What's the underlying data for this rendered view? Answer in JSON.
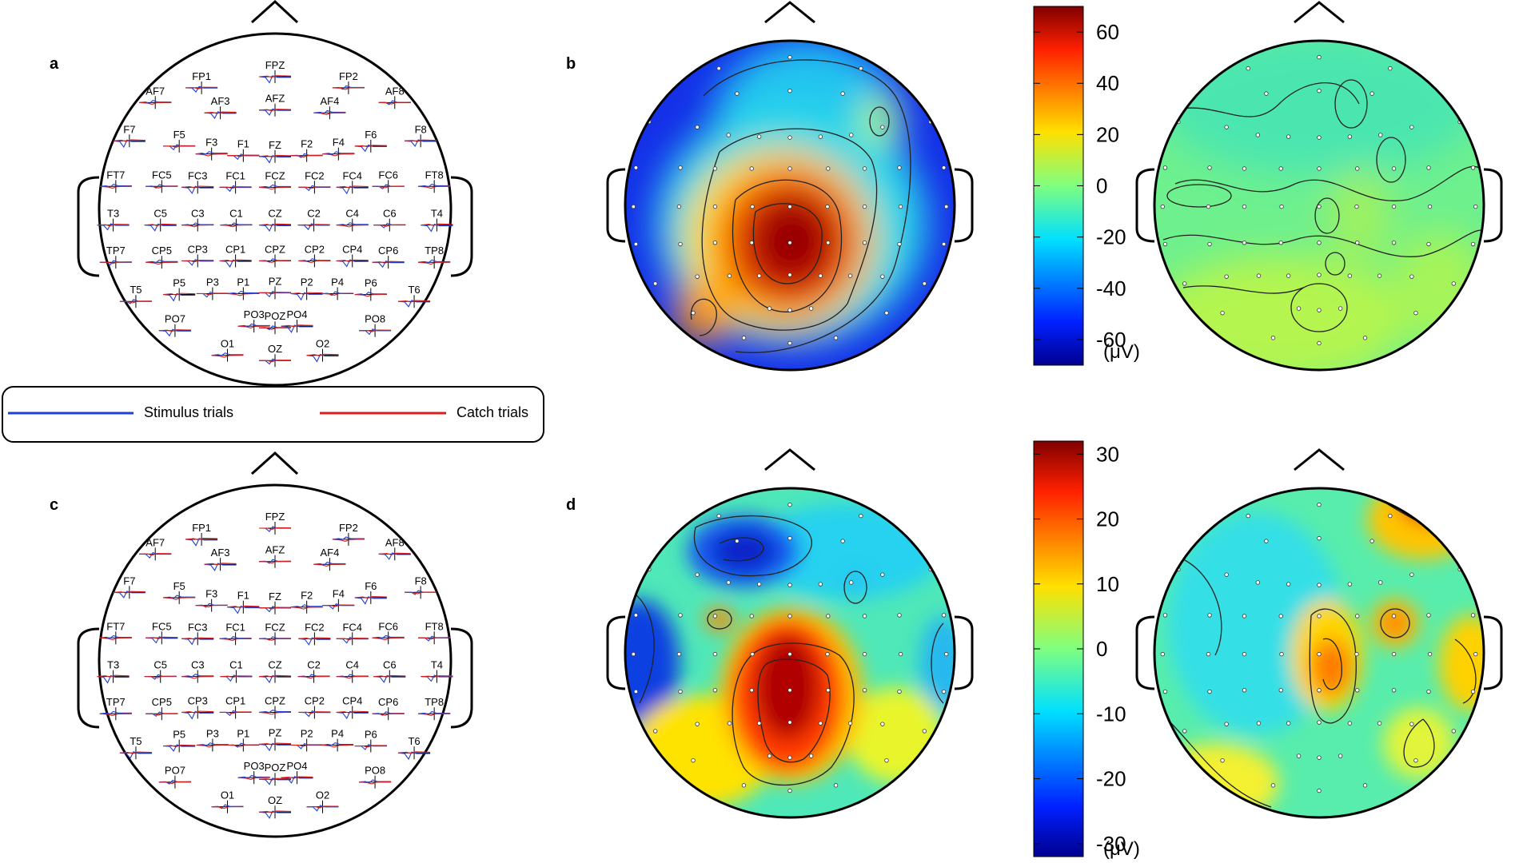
{
  "panels": {
    "a": {
      "label": "a"
    },
    "b": {
      "label": "b"
    },
    "c": {
      "label": "c"
    },
    "d": {
      "label": "d"
    }
  },
  "electrodes": [
    {
      "name": "FP1",
      "rx": 0.273,
      "ry": 0.04
    },
    {
      "name": "FPZ",
      "rx": 0.5,
      "ry": 0.0
    },
    {
      "name": "FP2",
      "rx": 0.727,
      "ry": 0.04
    },
    {
      "name": "AF7",
      "rx": 0.13,
      "ry": 0.093
    },
    {
      "name": "AF3",
      "rx": 0.331,
      "ry": 0.13
    },
    {
      "name": "AFZ",
      "rx": 0.5,
      "ry": 0.12
    },
    {
      "name": "AF4",
      "rx": 0.669,
      "ry": 0.13
    },
    {
      "name": "AF8",
      "rx": 0.87,
      "ry": 0.093
    },
    {
      "name": "F7",
      "rx": 0.05,
      "ry": 0.231
    },
    {
      "name": "F5",
      "rx": 0.204,
      "ry": 0.25
    },
    {
      "name": "F3",
      "rx": 0.304,
      "ry": 0.278
    },
    {
      "name": "F1",
      "rx": 0.402,
      "ry": 0.284
    },
    {
      "name": "FZ",
      "rx": 0.5,
      "ry": 0.287
    },
    {
      "name": "F2",
      "rx": 0.598,
      "ry": 0.284
    },
    {
      "name": "F4",
      "rx": 0.696,
      "ry": 0.278
    },
    {
      "name": "F6",
      "rx": 0.796,
      "ry": 0.25
    },
    {
      "name": "F8",
      "rx": 0.95,
      "ry": 0.231
    },
    {
      "name": "FT7",
      "rx": 0.008,
      "ry": 0.395
    },
    {
      "name": "FC5",
      "rx": 0.15,
      "ry": 0.395
    },
    {
      "name": "FC3",
      "rx": 0.261,
      "ry": 0.398
    },
    {
      "name": "FC1",
      "rx": 0.378,
      "ry": 0.398
    },
    {
      "name": "FCZ",
      "rx": 0.5,
      "ry": 0.398
    },
    {
      "name": "FC2",
      "rx": 0.622,
      "ry": 0.398
    },
    {
      "name": "FC4",
      "rx": 0.739,
      "ry": 0.398
    },
    {
      "name": "FC6",
      "rx": 0.85,
      "ry": 0.395
    },
    {
      "name": "FT8",
      "rx": 0.992,
      "ry": 0.395
    },
    {
      "name": "T3",
      "rx": 0.0,
      "ry": 0.534
    },
    {
      "name": "C5",
      "rx": 0.146,
      "ry": 0.534
    },
    {
      "name": "C3",
      "rx": 0.261,
      "ry": 0.534
    },
    {
      "name": "C1",
      "rx": 0.38,
      "ry": 0.534
    },
    {
      "name": "CZ",
      "rx": 0.5,
      "ry": 0.534
    },
    {
      "name": "C2",
      "rx": 0.62,
      "ry": 0.534
    },
    {
      "name": "C4",
      "rx": 0.739,
      "ry": 0.534
    },
    {
      "name": "C6",
      "rx": 0.854,
      "ry": 0.534
    },
    {
      "name": "T4",
      "rx": 1.0,
      "ry": 0.534
    },
    {
      "name": "TP7",
      "rx": 0.008,
      "ry": 0.668
    },
    {
      "name": "CP5",
      "rx": 0.15,
      "ry": 0.668
    },
    {
      "name": "CP3",
      "rx": 0.261,
      "ry": 0.663
    },
    {
      "name": "CP1",
      "rx": 0.378,
      "ry": 0.663
    },
    {
      "name": "CPZ",
      "rx": 0.5,
      "ry": 0.663
    },
    {
      "name": "CP2",
      "rx": 0.622,
      "ry": 0.663
    },
    {
      "name": "CP4",
      "rx": 0.739,
      "ry": 0.663
    },
    {
      "name": "CP6",
      "rx": 0.85,
      "ry": 0.668
    },
    {
      "name": "TP8",
      "rx": 0.992,
      "ry": 0.668
    },
    {
      "name": "T5",
      "rx": 0.07,
      "ry": 0.809
    },
    {
      "name": "P5",
      "rx": 0.204,
      "ry": 0.784
    },
    {
      "name": "P3",
      "rx": 0.307,
      "ry": 0.781
    },
    {
      "name": "P1",
      "rx": 0.402,
      "ry": 0.781
    },
    {
      "name": "PZ",
      "rx": 0.5,
      "ry": 0.778
    },
    {
      "name": "P2",
      "rx": 0.598,
      "ry": 0.781
    },
    {
      "name": "P4",
      "rx": 0.693,
      "ry": 0.781
    },
    {
      "name": "P6",
      "rx": 0.796,
      "ry": 0.784
    },
    {
      "name": "T6",
      "rx": 0.93,
      "ry": 0.809
    },
    {
      "name": "PO7",
      "rx": 0.191,
      "ry": 0.914
    },
    {
      "name": "PO3",
      "rx": 0.435,
      "ry": 0.898
    },
    {
      "name": "POZ",
      "rx": 0.5,
      "ry": 0.904
    },
    {
      "name": "PO4",
      "rx": 0.568,
      "ry": 0.898
    },
    {
      "name": "PO8",
      "rx": 0.809,
      "ry": 0.914
    },
    {
      "name": "O1",
      "rx": 0.353,
      "ry": 1.003
    },
    {
      "name": "OZ",
      "rx": 0.5,
      "ry": 1.022
    },
    {
      "name": "O2",
      "rx": 0.647,
      "ry": 1.003
    }
  ],
  "legend": {
    "stimulus_label": "Stimulus trials",
    "catch_label": "Catch trials",
    "stimulus_color": "#1f3fd6",
    "catch_color": "#d81e1e"
  },
  "colorbars": {
    "top": {
      "ticks": [
        "60",
        "40",
        "20",
        "0",
        "-20",
        "-40",
        "-60"
      ],
      "unit": "(μV)",
      "range": [
        -70,
        70
      ]
    },
    "bottom": {
      "ticks": [
        "30",
        "20",
        "10",
        "0",
        "-10",
        "-20",
        "-30"
      ],
      "unit": "(μV)",
      "range": [
        -32,
        32
      ]
    }
  },
  "colormap": "jet"
}
